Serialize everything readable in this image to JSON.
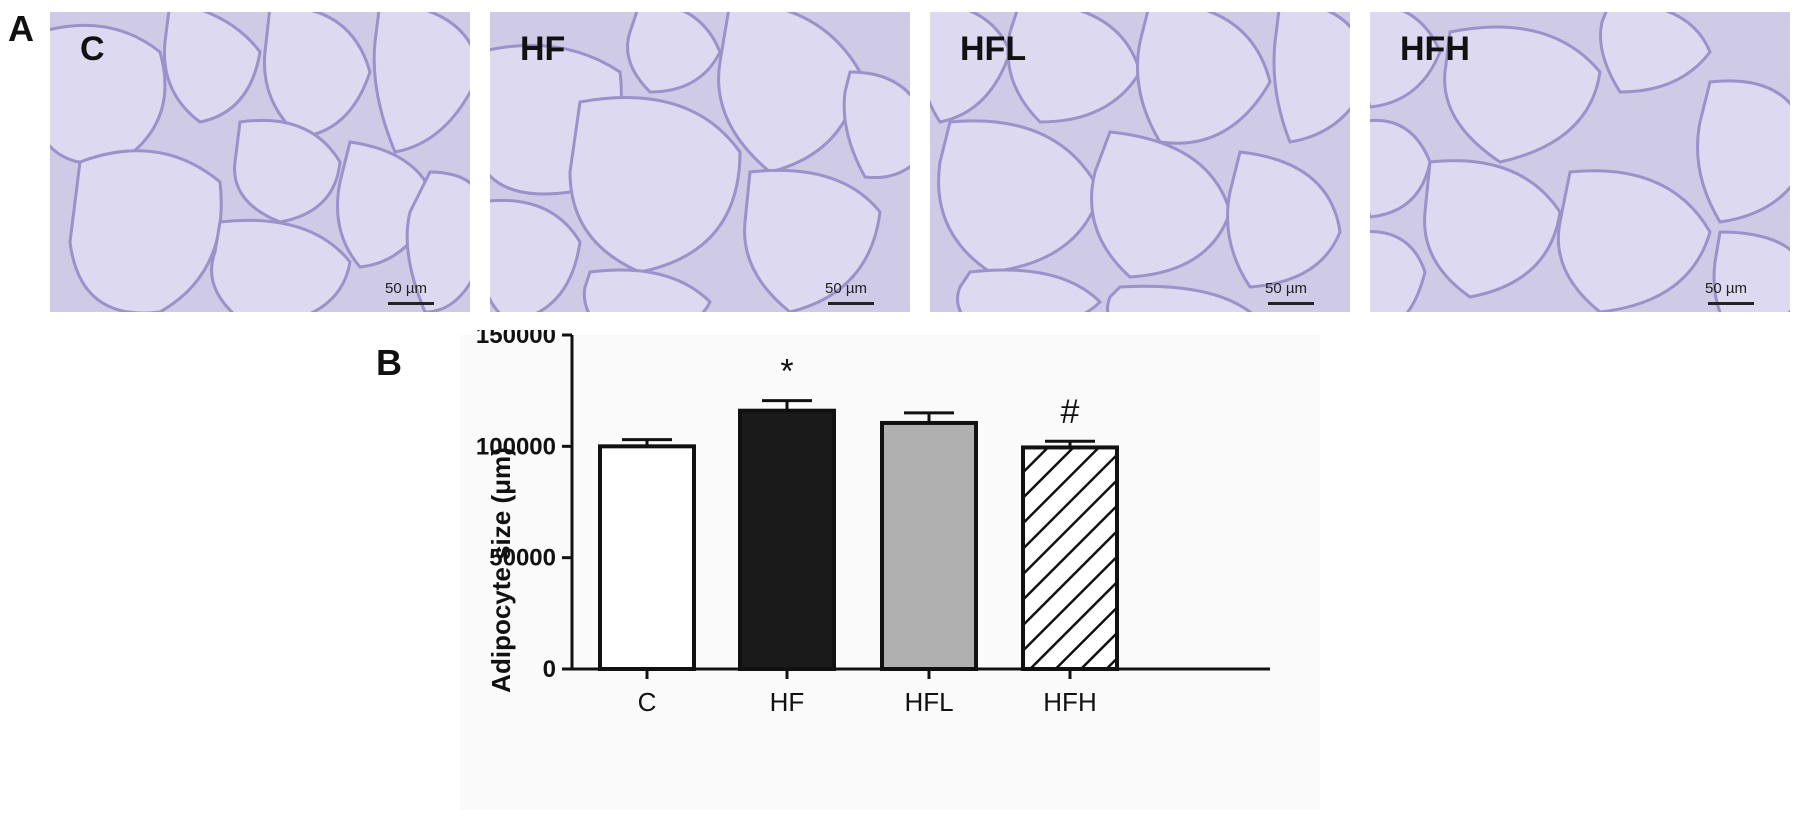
{
  "panel_a": {
    "letter": "A",
    "images": [
      {
        "label": "C",
        "scale_label": "50 µm"
      },
      {
        "label": "HF",
        "scale_label": "50 µm"
      },
      {
        "label": "HFL",
        "scale_label": "50 µm"
      },
      {
        "label": "HFH",
        "scale_label": "50 µm"
      }
    ]
  },
  "panel_b": {
    "letter": "B"
  },
  "chart_data": {
    "type": "bar",
    "categories": [
      "C",
      "HF",
      "HFL",
      "HFH"
    ],
    "values": [
      100000,
      116000,
      110500,
      99500
    ],
    "errors": [
      3000,
      4500,
      4500,
      2800
    ],
    "annotations": [
      "",
      "*",
      "",
      "#"
    ],
    "fills": [
      "#ffffff",
      "#1a1a1a",
      "#b0b0b0",
      "hatch"
    ],
    "ylabel": "Adipocyte size (μm)",
    "ylim": [
      0,
      150000
    ],
    "yticks": [
      0,
      50000,
      100000,
      150000
    ],
    "ytick_labels": [
      "0",
      "50000",
      "100000",
      "150000"
    ]
  }
}
